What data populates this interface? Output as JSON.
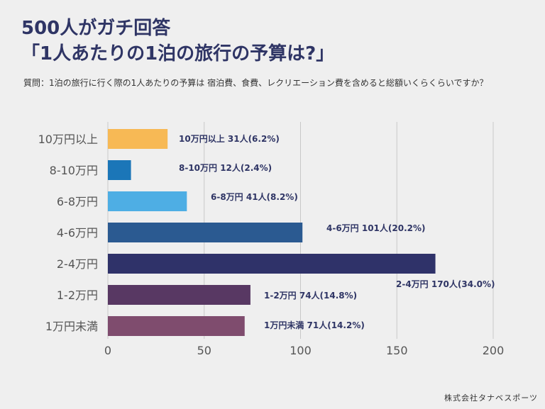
{
  "title_line1": "500人がガチ回答",
  "title_line2": "「1人あたりの1泊の旅行の予算は?」",
  "question": "質問：1泊の旅行に行く際の1人あたりの予算は 宿泊費、食費、レクリエーション費を含めると総額いくらくらいですか？",
  "credit": "株式会社タナベスポーツ",
  "chart_data": {
    "type": "bar",
    "orientation": "horizontal",
    "xlim": [
      0,
      200
    ],
    "xticks": [
      0,
      50,
      100,
      150,
      200
    ],
    "grid": true,
    "bars": [
      {
        "category": "10万円以上",
        "value": 31,
        "label": "10万円以上  31人(6.2%)",
        "color": "#f7b955"
      },
      {
        "category": "8-10万円",
        "value": 12,
        "label": "8-10万円  12人(2.4%)",
        "color": "#1b76b8"
      },
      {
        "category": "6-8万円",
        "value": 41,
        "label": "6-8万円  41人(8.2%)",
        "color": "#4eaee4"
      },
      {
        "category": "4-6万円",
        "value": 101,
        "label": "4-6万円 101人(20.2%)",
        "color": "#2b5a91"
      },
      {
        "category": "2-4万円",
        "value": 170,
        "label": "2-4万円 170人(34.0%)",
        "color": "#2f3269"
      },
      {
        "category": "1-2万円",
        "value": 74,
        "label": "1-2万円 74人(14.8%)",
        "color": "#583863"
      },
      {
        "category": "1万円未満",
        "value": 71,
        "label": "1万円未満 71人(14.2%)",
        "color": "#7f4c6e"
      }
    ]
  }
}
